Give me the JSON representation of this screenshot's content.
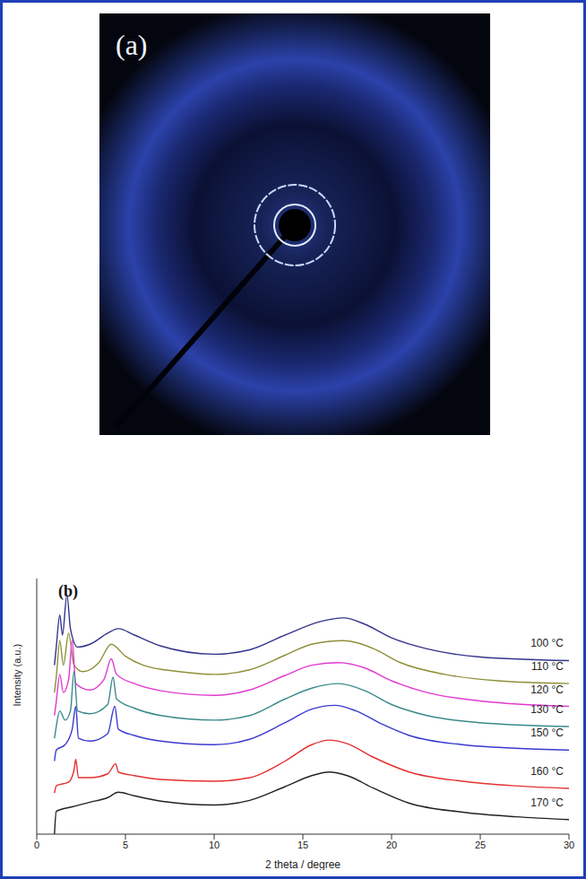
{
  "image": {
    "label": "(a)"
  },
  "chart_data": {
    "type": "line",
    "title": "(b)",
    "x_label": "2 theta / degree",
    "y_label": "Intensity (a.u.)",
    "xlim": [
      0,
      30
    ],
    "xticks": [
      0,
      5,
      10,
      15,
      20,
      25,
      30
    ],
    "ylim": [
      0,
      100
    ],
    "tick_labels": "x",
    "grid": false,
    "series": [
      {
        "name": "100 °C",
        "color": "#34348c",
        "x": [
          1.0,
          1.1,
          1.3,
          1.45,
          1.7,
          1.9,
          2.3,
          3,
          4,
          4.6,
          5.5,
          7,
          10,
          12,
          14,
          16,
          17.3,
          18.5,
          20,
          22,
          25,
          30
        ],
        "values": [
          66.1,
          73.2,
          85.7,
          77.9,
          93.6,
          80.4,
          73.2,
          74.3,
          78.6,
          80.4,
          77.9,
          73.6,
          70.4,
          72.1,
          77.9,
          83.2,
          84.6,
          82.1,
          76.8,
          72.5,
          69.3,
          67.9
        ]
      },
      {
        "name": "110 °C",
        "color": "#8f8f3a",
        "x": [
          1.0,
          1.1,
          1.3,
          1.5,
          1.8,
          2.1,
          2.6,
          3.5,
          4.2,
          5,
          6,
          8,
          10,
          12,
          14,
          15.5,
          17.3,
          19,
          20.5,
          23,
          26,
          30
        ],
        "values": [
          55.4,
          61.4,
          75.7,
          66.1,
          78.6,
          66.1,
          63.6,
          67.1,
          74.3,
          69.6,
          66.1,
          63.6,
          62.5,
          64.3,
          70,
          74.3,
          75.7,
          72.5,
          67.1,
          62.5,
          60,
          58.9
        ]
      },
      {
        "name": "120 °C",
        "color": "#e03ad0",
        "x": [
          1.0,
          1.1,
          1.3,
          1.5,
          1.8,
          2.0,
          2.2,
          3,
          3.8,
          4.2,
          4.5,
          5.5,
          7,
          10,
          12,
          14,
          15.5,
          17,
          18.5,
          20,
          22,
          25,
          30
        ],
        "values": [
          46.4,
          51.8,
          62.5,
          55.4,
          60.7,
          75.7,
          58.9,
          56.4,
          60.7,
          68.6,
          62.5,
          58.9,
          56.1,
          54.3,
          56.4,
          62.1,
          66.1,
          67.1,
          65,
          60,
          55.4,
          52.1,
          50
        ]
      },
      {
        "name": "130 °C",
        "color": "#3a8a8a",
        "x": [
          1.0,
          1.1,
          1.3,
          1.6,
          1.9,
          2.1,
          2.3,
          3,
          4,
          4.3,
          4.5,
          5.5,
          7,
          10,
          12,
          14,
          15.5,
          17,
          18.5,
          20,
          22,
          25,
          30
        ],
        "values": [
          37.5,
          42.1,
          48.2,
          44.6,
          48.2,
          63.6,
          48.2,
          47.1,
          50.7,
          61.4,
          52.9,
          49.3,
          46.4,
          44.6,
          46.4,
          52.9,
          57.1,
          58.9,
          56.1,
          50.7,
          46.4,
          43.6,
          42.1
        ]
      },
      {
        "name": "150 °C",
        "color": "#3a3ad0",
        "x": [
          1.0,
          1.1,
          1.6,
          2.0,
          2.2,
          2.35,
          3,
          4,
          4.4,
          4.6,
          5.5,
          7,
          10,
          12,
          14,
          15.5,
          16.8,
          18,
          19.5,
          21,
          24,
          27,
          30
        ],
        "values": [
          28.6,
          32.9,
          35,
          41.1,
          50,
          37.5,
          36.4,
          39.3,
          50,
          41.1,
          38.6,
          36.4,
          35,
          37.1,
          43.6,
          48.9,
          50.4,
          48.2,
          42.9,
          38.6,
          35,
          33.6,
          32.9
        ]
      },
      {
        "name": "160 °C",
        "color": "#e53030",
        "x": [
          1.0,
          1.1,
          1.8,
          2.1,
          2.2,
          2.35,
          3,
          4,
          4.45,
          4.6,
          5.5,
          7,
          10,
          12,
          14,
          15.5,
          16.5,
          17.5,
          19,
          21,
          24,
          27,
          30
        ],
        "values": [
          16.1,
          18.9,
          20.4,
          25,
          29.3,
          22.1,
          22.1,
          23.6,
          27.5,
          24.3,
          22.9,
          21.4,
          20.7,
          22.1,
          28.6,
          35,
          36.8,
          35.4,
          30,
          24.3,
          20.7,
          18.9,
          17.9
        ]
      },
      {
        "name": "170 °C",
        "color": "#222222",
        "x": [
          1.0,
          1.1,
          2,
          3,
          4,
          4.6,
          5.5,
          7,
          10,
          12,
          14,
          15.5,
          16.5,
          17.5,
          19,
          21,
          24,
          27,
          30
        ],
        "values": [
          0,
          8.9,
          10.7,
          12.5,
          14.3,
          16.4,
          15,
          12.9,
          11.4,
          13.2,
          18.6,
          22.9,
          24.3,
          22.9,
          17.9,
          12.1,
          8.6,
          6.8,
          5.7
        ]
      }
    ]
  }
}
